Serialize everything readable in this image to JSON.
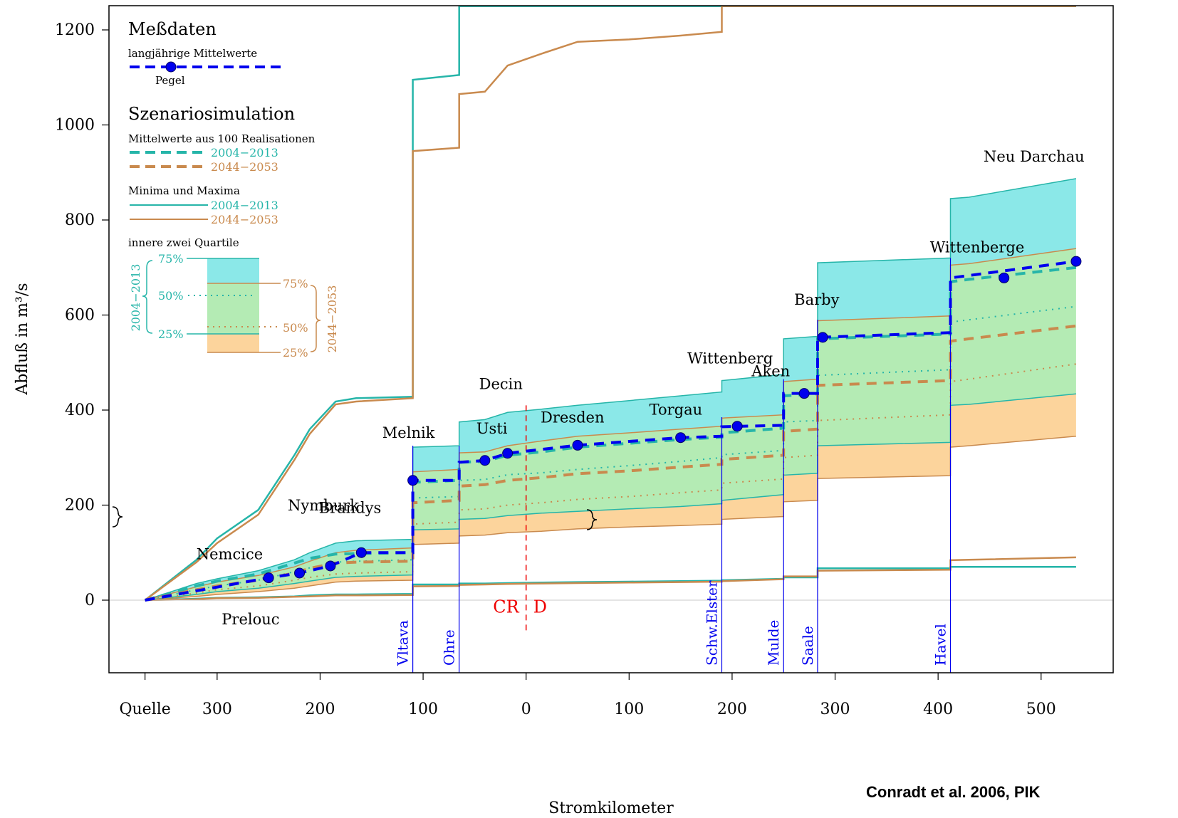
{
  "chart_data": {
    "type": "area",
    "xlabel": "Stromkilometer",
    "ylabel": "Abfluß in m³/s",
    "ylim": [
      -150,
      1250
    ],
    "y_ticks": [
      0,
      200,
      400,
      600,
      800,
      1000,
      1200
    ],
    "x_ticks": [
      {
        "label": "Quelle",
        "pos": 0
      },
      {
        "label": "300",
        "pos": 70
      },
      {
        "label": "200",
        "pos": 170
      },
      {
        "label": "100",
        "pos": 270
      },
      {
        "label": "0",
        "pos": 370
      },
      {
        "label": "100",
        "pos": 470
      },
      {
        "label": "200",
        "pos": 570
      },
      {
        "label": "300",
        "pos": 670
      },
      {
        "label": "400",
        "pos": 770
      },
      {
        "label": "500",
        "pos": 870
      }
    ],
    "x_range": [
      -35,
      940
    ],
    "legend": {
      "measured_title": "Meßdaten",
      "measured_sub": "langjährige Mittelwerte",
      "pegel": "Pegel",
      "scenario_title": "Szenariosimulation",
      "mean_title": "Mittelwerte aus 100 Realisationen",
      "minmax_title": "Minima und Maxima",
      "quartile_title": "innere zwei Quartile",
      "period_a": "2004−2013",
      "period_b": "2044−2053",
      "q75": "75%",
      "q50": "50%",
      "q25": "25%"
    },
    "colors": {
      "teal": "#26b5a9",
      "brown": "#c98a4e",
      "teal_fill": "#8be8e8",
      "green_fill": "#b4ebb4",
      "orange_fill": "#fcd49c",
      "measured": "#0000ee",
      "tributary": "#0000ee",
      "border": "#ee0000"
    },
    "series": {
      "x": [
        0,
        50,
        70,
        110,
        145,
        160,
        185,
        205,
        260,
        260,
        305,
        305,
        330,
        352,
        385,
        420,
        470,
        520,
        560,
        560,
        620,
        620,
        653,
        653,
        782,
        782,
        800,
        904
      ],
      "teal_max": [
        0,
        85,
        130,
        190,
        305,
        360,
        418,
        425,
        428,
        1095,
        1105,
        1250,
        1250,
        1250,
        1250,
        1250,
        1250,
        1250,
        1250,
        1250,
        1250,
        1250,
        1250,
        1250,
        1250,
        1250,
        1250,
        1250
      ],
      "brown_max": [
        0,
        80,
        120,
        180,
        295,
        350,
        412,
        418,
        425,
        945,
        952,
        1065,
        1070,
        1125,
        1150,
        1175,
        1180,
        1188,
        1196,
        1250,
        1250,
        1250,
        1250,
        1250,
        1250,
        1250,
        1250,
        1250
      ],
      "teal_q75": [
        0,
        35,
        45,
        62,
        85,
        100,
        120,
        125,
        128,
        322,
        325,
        375,
        380,
        395,
        402,
        410,
        420,
        430,
        438,
        462,
        475,
        550,
        555,
        710,
        720,
        845,
        848,
        887
      ],
      "brown_q75": [
        0,
        28,
        38,
        52,
        70,
        82,
        100,
        105,
        110,
        270,
        275,
        310,
        312,
        325,
        335,
        345,
        352,
        360,
        366,
        383,
        390,
        460,
        465,
        588,
        598,
        705,
        708,
        740
      ],
      "teal_q50": [
        0,
        22,
        30,
        42,
        60,
        68,
        80,
        82,
        85,
        215,
        218,
        252,
        254,
        264,
        268,
        275,
        283,
        292,
        300,
        306,
        315,
        375,
        378,
        473,
        485,
        585,
        590,
        618
      ],
      "brown_q50": [
        0,
        15,
        22,
        30,
        42,
        48,
        55,
        57,
        60,
        160,
        164,
        190,
        192,
        200,
        205,
        212,
        218,
        226,
        232,
        246,
        255,
        300,
        305,
        378,
        390,
        460,
        465,
        497
      ],
      "teal_q25": [
        0,
        12,
        18,
        25,
        35,
        40,
        48,
        50,
        53,
        148,
        150,
        170,
        172,
        178,
        183,
        187,
        192,
        197,
        203,
        210,
        222,
        263,
        267,
        325,
        332,
        410,
        412,
        434
      ],
      "brown_q25": [
        0,
        8,
        12,
        18,
        25,
        30,
        38,
        40,
        42,
        117,
        120,
        135,
        137,
        142,
        145,
        150,
        154,
        157,
        160,
        170,
        176,
        207,
        210,
        256,
        262,
        322,
        325,
        345
      ],
      "teal_mean": [
        0,
        30,
        40,
        55,
        78,
        88,
        97,
        98,
        100,
        248,
        252,
        290,
        292,
        305,
        312,
        322,
        330,
        338,
        343,
        352,
        362,
        430,
        434,
        550,
        560,
        670,
        675,
        700
      ],
      "brown_mean": [
        0,
        22,
        30,
        42,
        57,
        67,
        78,
        80,
        82,
        205,
        210,
        240,
        243,
        252,
        258,
        266,
        272,
        280,
        286,
        296,
        305,
        355,
        360,
        452,
        462,
        545,
        550,
        577
      ],
      "teal_min": [
        0,
        3,
        5,
        6,
        8,
        10,
        12,
        12,
        13,
        33,
        33,
        35,
        35,
        36,
        37,
        38,
        39,
        40,
        41,
        42,
        45,
        48,
        48,
        67,
        67,
        70,
        70,
        70
      ],
      "brown_min": [
        0,
        2,
        4,
        5,
        7,
        8,
        10,
        10,
        11,
        29,
        30,
        32,
        33,
        34,
        35,
        36,
        37,
        38,
        39,
        40,
        44,
        50,
        50,
        62,
        64,
        84,
        85,
        90
      ]
    },
    "measured_line": {
      "x": [
        0,
        120,
        150,
        180,
        210,
        260,
        260,
        305,
        305,
        330,
        352,
        420,
        520,
        560,
        560,
        620,
        620,
        653,
        653,
        782,
        782,
        904
      ],
      "y": [
        0,
        47,
        57,
        72,
        100,
        100,
        252,
        252,
        290,
        294,
        309,
        326,
        342,
        345,
        365,
        368,
        435,
        435,
        553,
        563,
        678,
        713
      ]
    },
    "stations": [
      {
        "name": "Nemcice",
        "x": 120,
        "y": 47
      },
      {
        "name": "Prelouc",
        "x": 150,
        "y": 57
      },
      {
        "name": "Nymburk",
        "x": 180,
        "y": 72
      },
      {
        "name": "Brandys",
        "x": 210,
        "y": 100
      },
      {
        "name": "Melnik",
        "x": 260,
        "y": 252
      },
      {
        "name": "Usti",
        "x": 330,
        "y": 294
      },
      {
        "name": "Decin",
        "x": 352,
        "y": 309
      },
      {
        "name": "Dresden",
        "x": 420,
        "y": 326
      },
      {
        "name": "Torgau",
        "x": 520,
        "y": 342
      },
      {
        "name": "Wittenberg",
        "x": 575,
        "y": 366
      },
      {
        "name": "Aken",
        "x": 640,
        "y": 435
      },
      {
        "name": "Barby",
        "x": 658,
        "y": 553
      },
      {
        "name": "Wittenberge",
        "x": 834,
        "y": 678
      },
      {
        "name": "Neu Darchau",
        "x": 904,
        "y": 713
      }
    ],
    "tributaries": [
      {
        "name": "Vltava",
        "x": 260
      },
      {
        "name": "Ohre",
        "x": 305
      },
      {
        "name": "Schw.Elster",
        "x": 560
      },
      {
        "name": "Mulde",
        "x": 620
      },
      {
        "name": "Saale",
        "x": 653
      },
      {
        "name": "Havel",
        "x": 782
      }
    ],
    "border": {
      "x": 370,
      "left": "CR",
      "right": "D"
    }
  },
  "credit": "Conradt et al. 2006, PIK"
}
